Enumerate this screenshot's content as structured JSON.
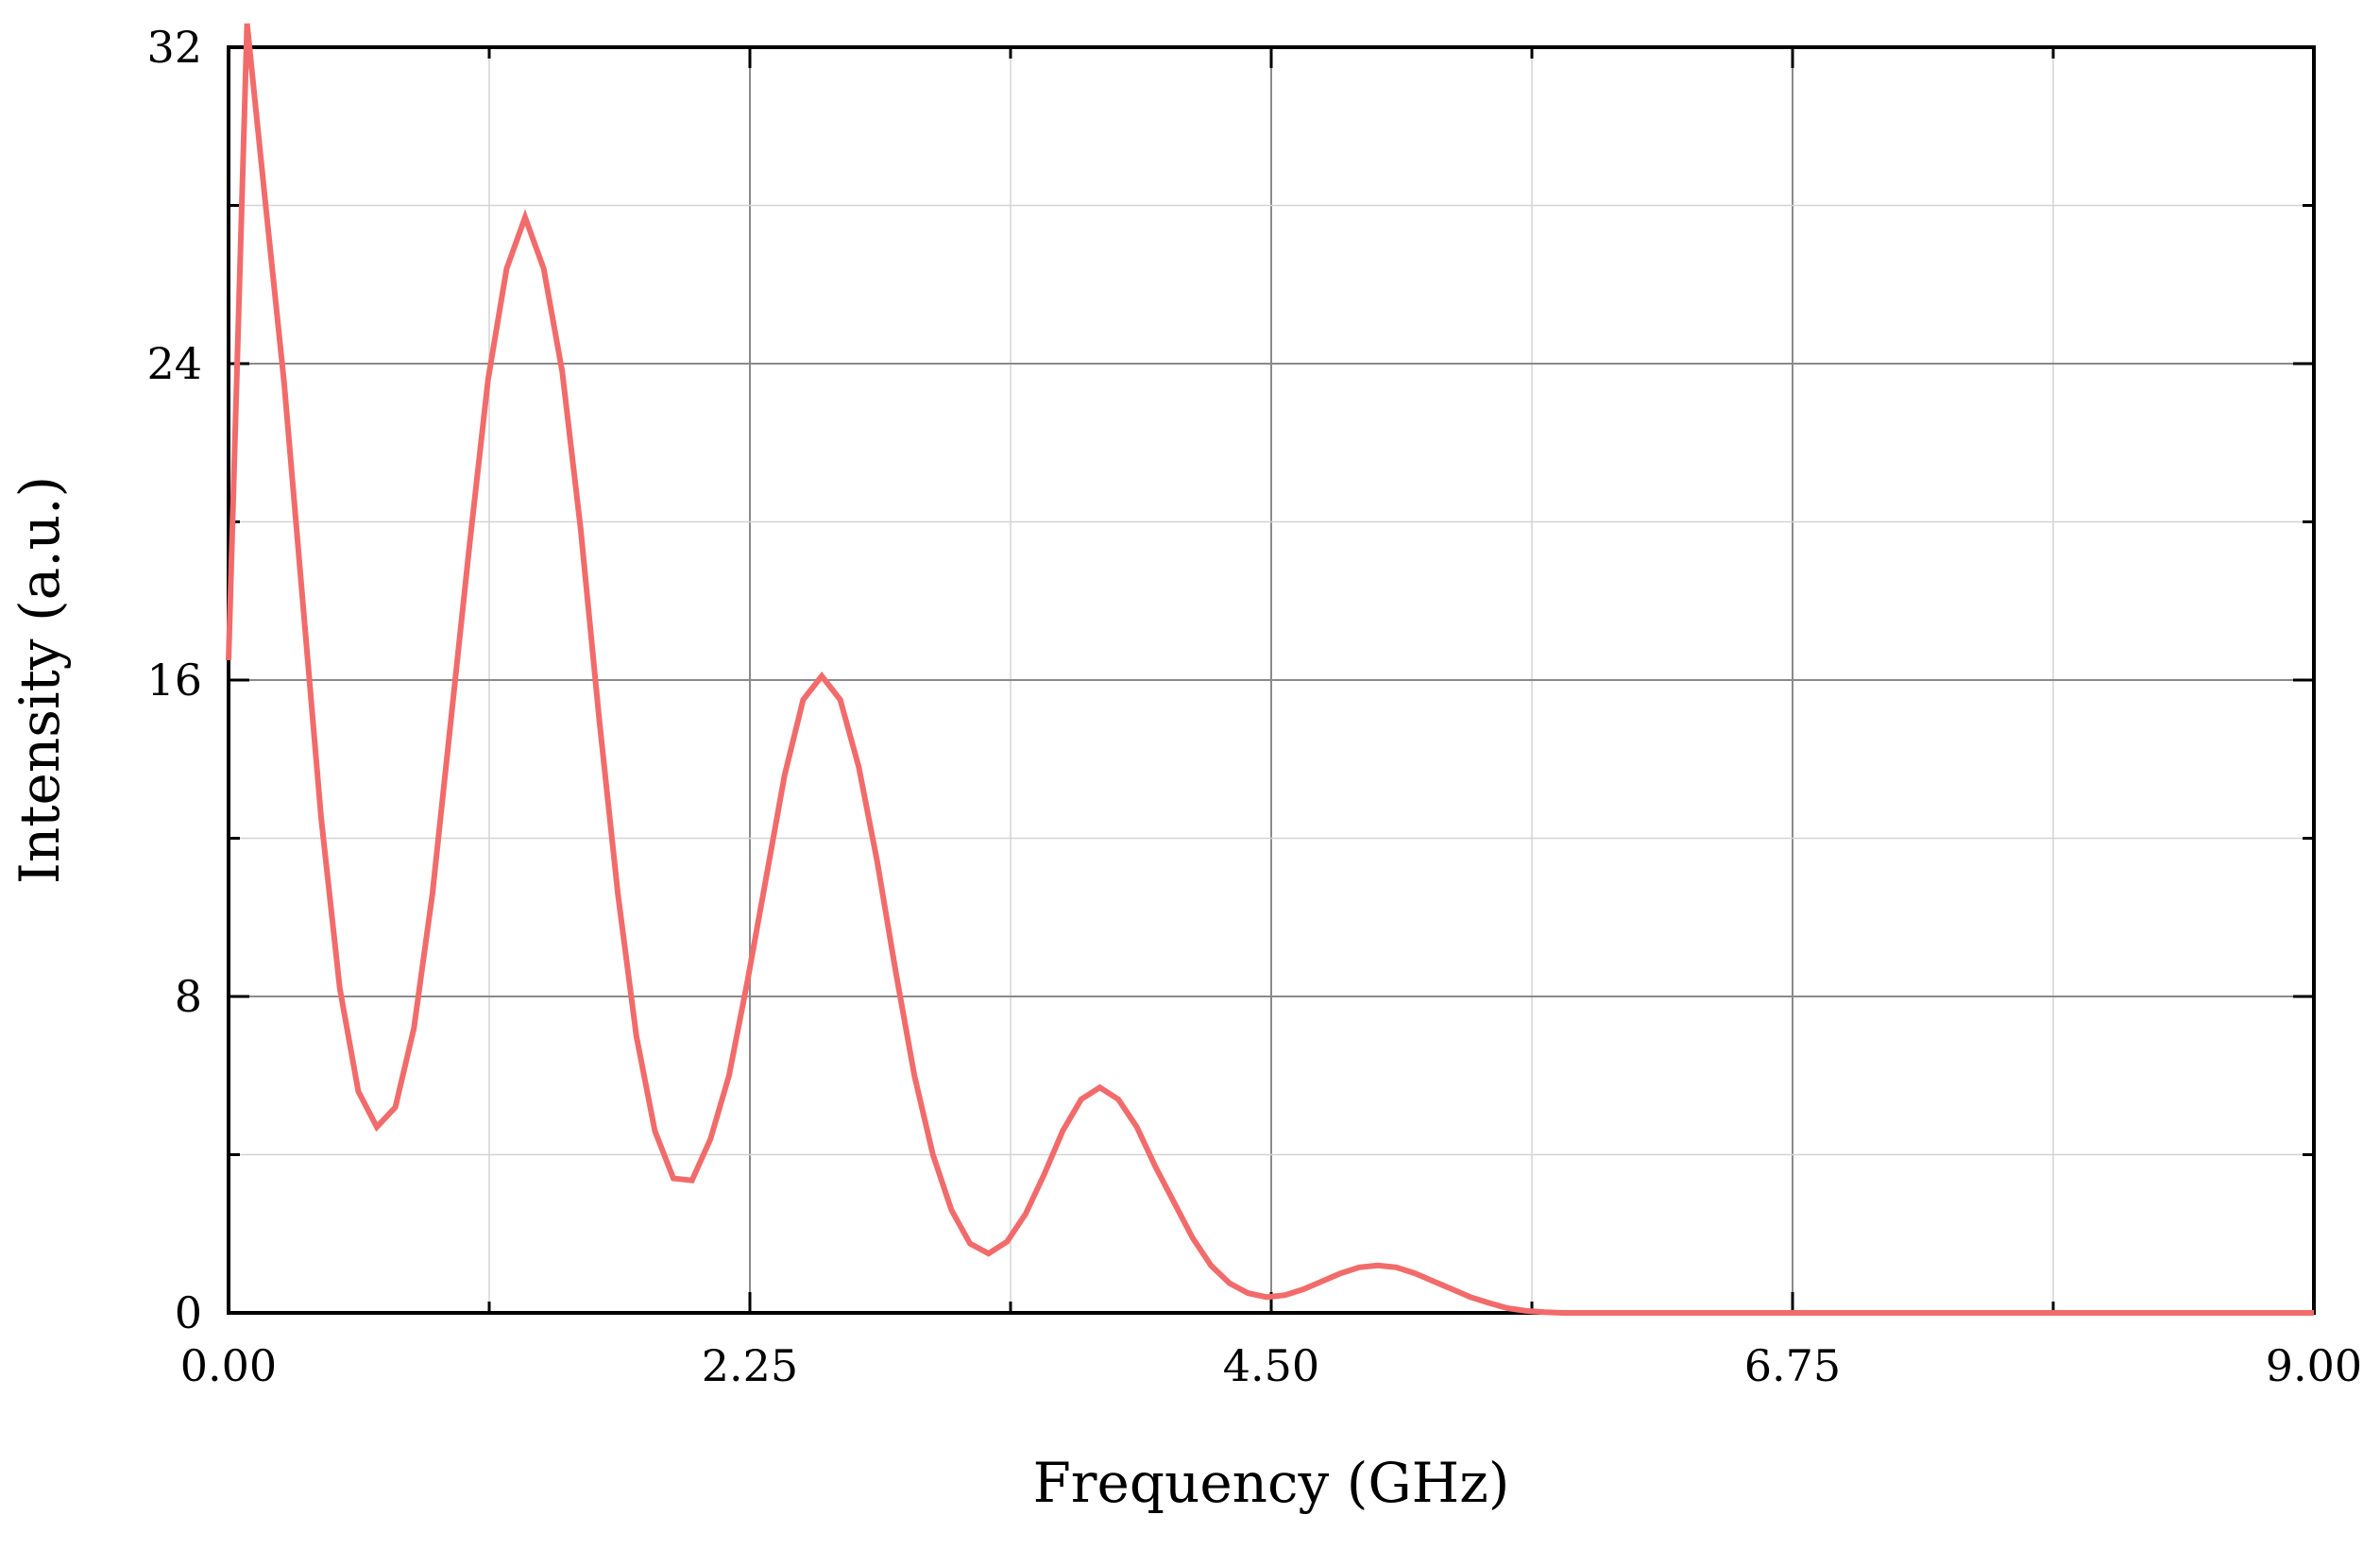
{
  "chart_data": {
    "type": "line",
    "title": "",
    "xlabel": "Frequency (GHz)",
    "ylabel": "Intensity (a.u.)",
    "xlim": [
      0,
      9
    ],
    "ylim": [
      0,
      32
    ],
    "x_ticks": [
      "0.00",
      "2.25",
      "4.50",
      "6.75",
      "9.00"
    ],
    "x_tick_values": [
      0,
      2.25,
      4.5,
      6.75,
      9
    ],
    "y_ticks": [
      "0",
      "8",
      "16",
      "24",
      "32"
    ],
    "y_tick_values": [
      0,
      8,
      16,
      24,
      32
    ],
    "x_minor_tick_values": [
      1.125,
      3.375,
      5.625,
      7.875
    ],
    "y_minor_tick_values": [
      4,
      12,
      20,
      28
    ],
    "grid": true,
    "legend": "none",
    "series": [
      {
        "color": "#f26b6b",
        "x": [
          0.0,
          0.08,
          0.16,
          0.24,
          0.32,
          0.4,
          0.48,
          0.56,
          0.64,
          0.72,
          0.8,
          0.88,
          0.96,
          1.04,
          1.12,
          1.2,
          1.28,
          1.36,
          1.44,
          1.52,
          1.6,
          1.68,
          1.76,
          1.84,
          1.92,
          2.0,
          2.08,
          2.16,
          2.24,
          2.32,
          2.4,
          2.48,
          2.56,
          2.64,
          2.72,
          2.8,
          2.88,
          2.96,
          3.04,
          3.12,
          3.2,
          3.28,
          3.36,
          3.44,
          3.52,
          3.6,
          3.68,
          3.76,
          3.84,
          3.92,
          4.0,
          4.08,
          4.16,
          4.24,
          4.32,
          4.4,
          4.48,
          4.56,
          4.64,
          4.72,
          4.8,
          4.88,
          4.96,
          5.04,
          5.12,
          5.2,
          5.28,
          5.36,
          5.44,
          5.52,
          5.6,
          5.68,
          5.76,
          5.84,
          5.92,
          6.0,
          6.5,
          7.0,
          7.5,
          8.0,
          8.5,
          9.0
        ],
        "y": [
          16.5,
          32.6,
          28.0,
          23.5,
          18.0,
          12.5,
          8.2,
          5.6,
          4.7,
          5.2,
          7.2,
          10.6,
          15.0,
          19.4,
          23.6,
          26.4,
          27.7,
          26.4,
          23.8,
          19.8,
          15.0,
          10.6,
          7.0,
          4.6,
          3.4,
          3.35,
          4.4,
          6.0,
          8.4,
          11.0,
          13.6,
          15.5,
          16.1,
          15.5,
          13.8,
          11.4,
          8.6,
          6.0,
          4.0,
          2.6,
          1.75,
          1.5,
          1.8,
          2.5,
          3.5,
          4.6,
          5.4,
          5.7,
          5.4,
          4.7,
          3.7,
          2.8,
          1.9,
          1.2,
          0.75,
          0.5,
          0.4,
          0.45,
          0.6,
          0.8,
          1.0,
          1.15,
          1.2,
          1.15,
          1.0,
          0.8,
          0.6,
          0.4,
          0.25,
          0.12,
          0.05,
          0.02,
          0.0,
          0.0,
          0.0,
          0.0,
          0.0,
          0.0,
          0.0,
          0.0,
          0.0,
          0.0
        ]
      }
    ]
  }
}
